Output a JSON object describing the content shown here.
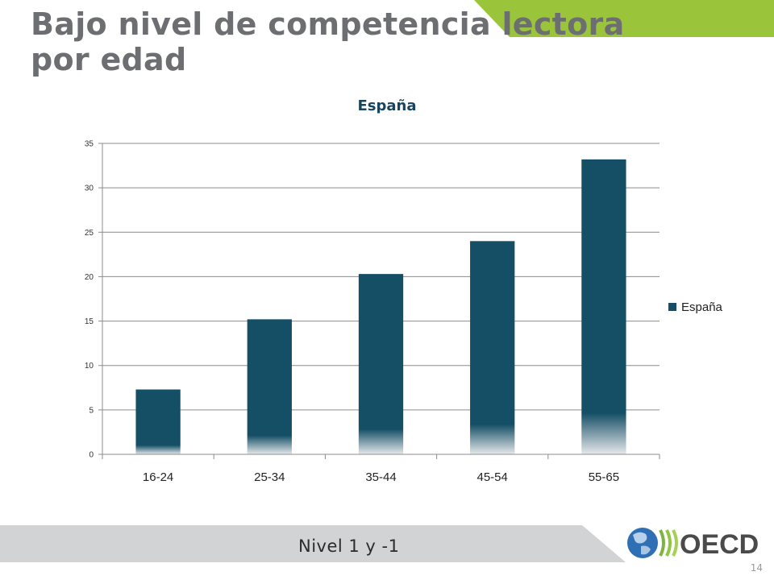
{
  "slide": {
    "title": "Bajo nivel de competencia lectora por edad",
    "footer_label": "Nivel 1 y -1",
    "page_number": "14",
    "logo_text": "OECD"
  },
  "colors": {
    "title_gray": "#6d6e71",
    "accent_green": "#9ac53b",
    "bar_teal": "#154f66",
    "banner_gray": "#d2d3d5"
  },
  "chart_data": {
    "type": "bar",
    "title": "España",
    "categories": [
      "16-24",
      "25-34",
      "35-44",
      "45-54",
      "55-65"
    ],
    "series": [
      {
        "name": "España",
        "values": [
          7.3,
          15.2,
          20.3,
          24.0,
          33.2
        ]
      }
    ],
    "ylim": [
      0,
      35
    ],
    "yticks": [
      0,
      5,
      10,
      15,
      20,
      25,
      30,
      35
    ],
    "grid": true,
    "legend": "right"
  }
}
